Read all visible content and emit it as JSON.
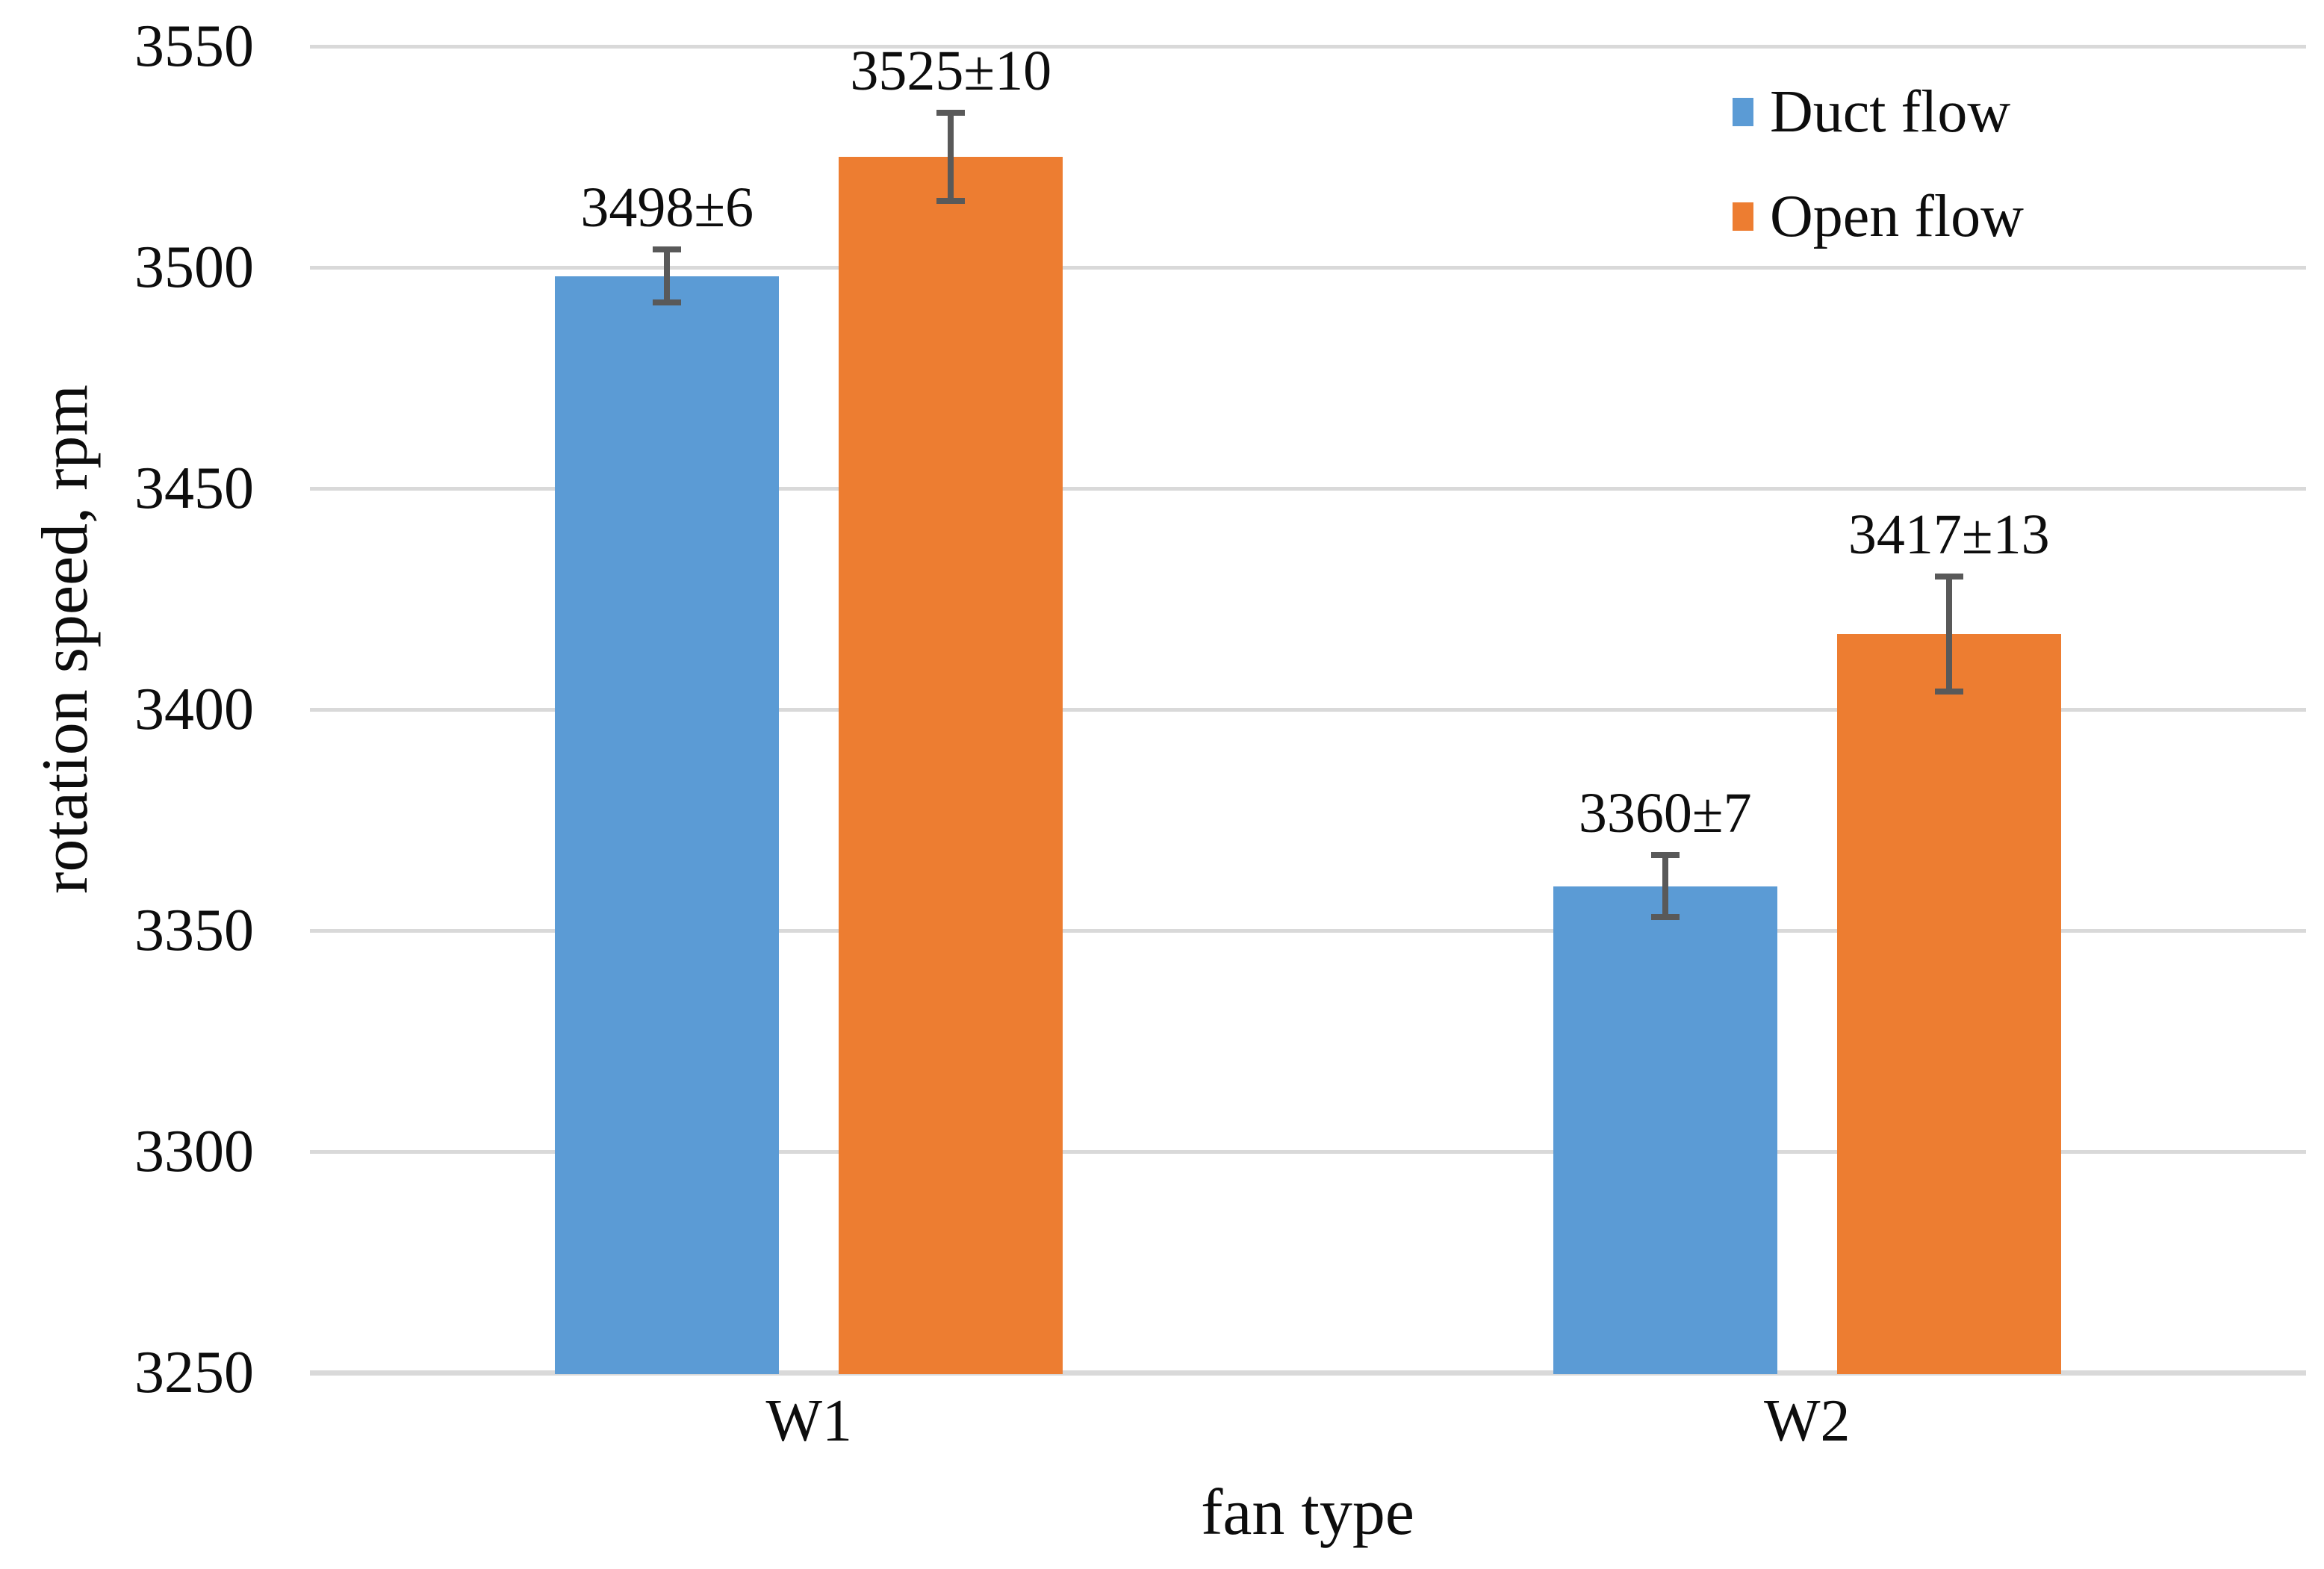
{
  "chart_data": {
    "type": "bar",
    "title": "",
    "xlabel": "fan type",
    "ylabel": "rotation speed, rpm",
    "categories": [
      "W1",
      "W2"
    ],
    "series": [
      {
        "name": "Duct flow",
        "color": "#5B9BD5",
        "values": [
          3498,
          3360
        ],
        "errors": [
          6,
          7
        ],
        "labels": [
          "3498±6",
          "3360±7"
        ]
      },
      {
        "name": "Open flow",
        "color": "#ED7D31",
        "values": [
          3525,
          3417
        ],
        "errors": [
          10,
          13
        ],
        "labels": [
          "3525±10",
          "3417±13"
        ]
      }
    ],
    "ylim": [
      3250,
      3550
    ],
    "ytick_interval": 50,
    "yticks": [
      "3550",
      "3500",
      "3450",
      "3400",
      "3350",
      "3300",
      "3250"
    ],
    "grid": true,
    "legend_position": "top-right",
    "gridline_color": "#d9d9d9",
    "error_bar_color": "#595959",
    "text_color": "#0d0d0d"
  }
}
